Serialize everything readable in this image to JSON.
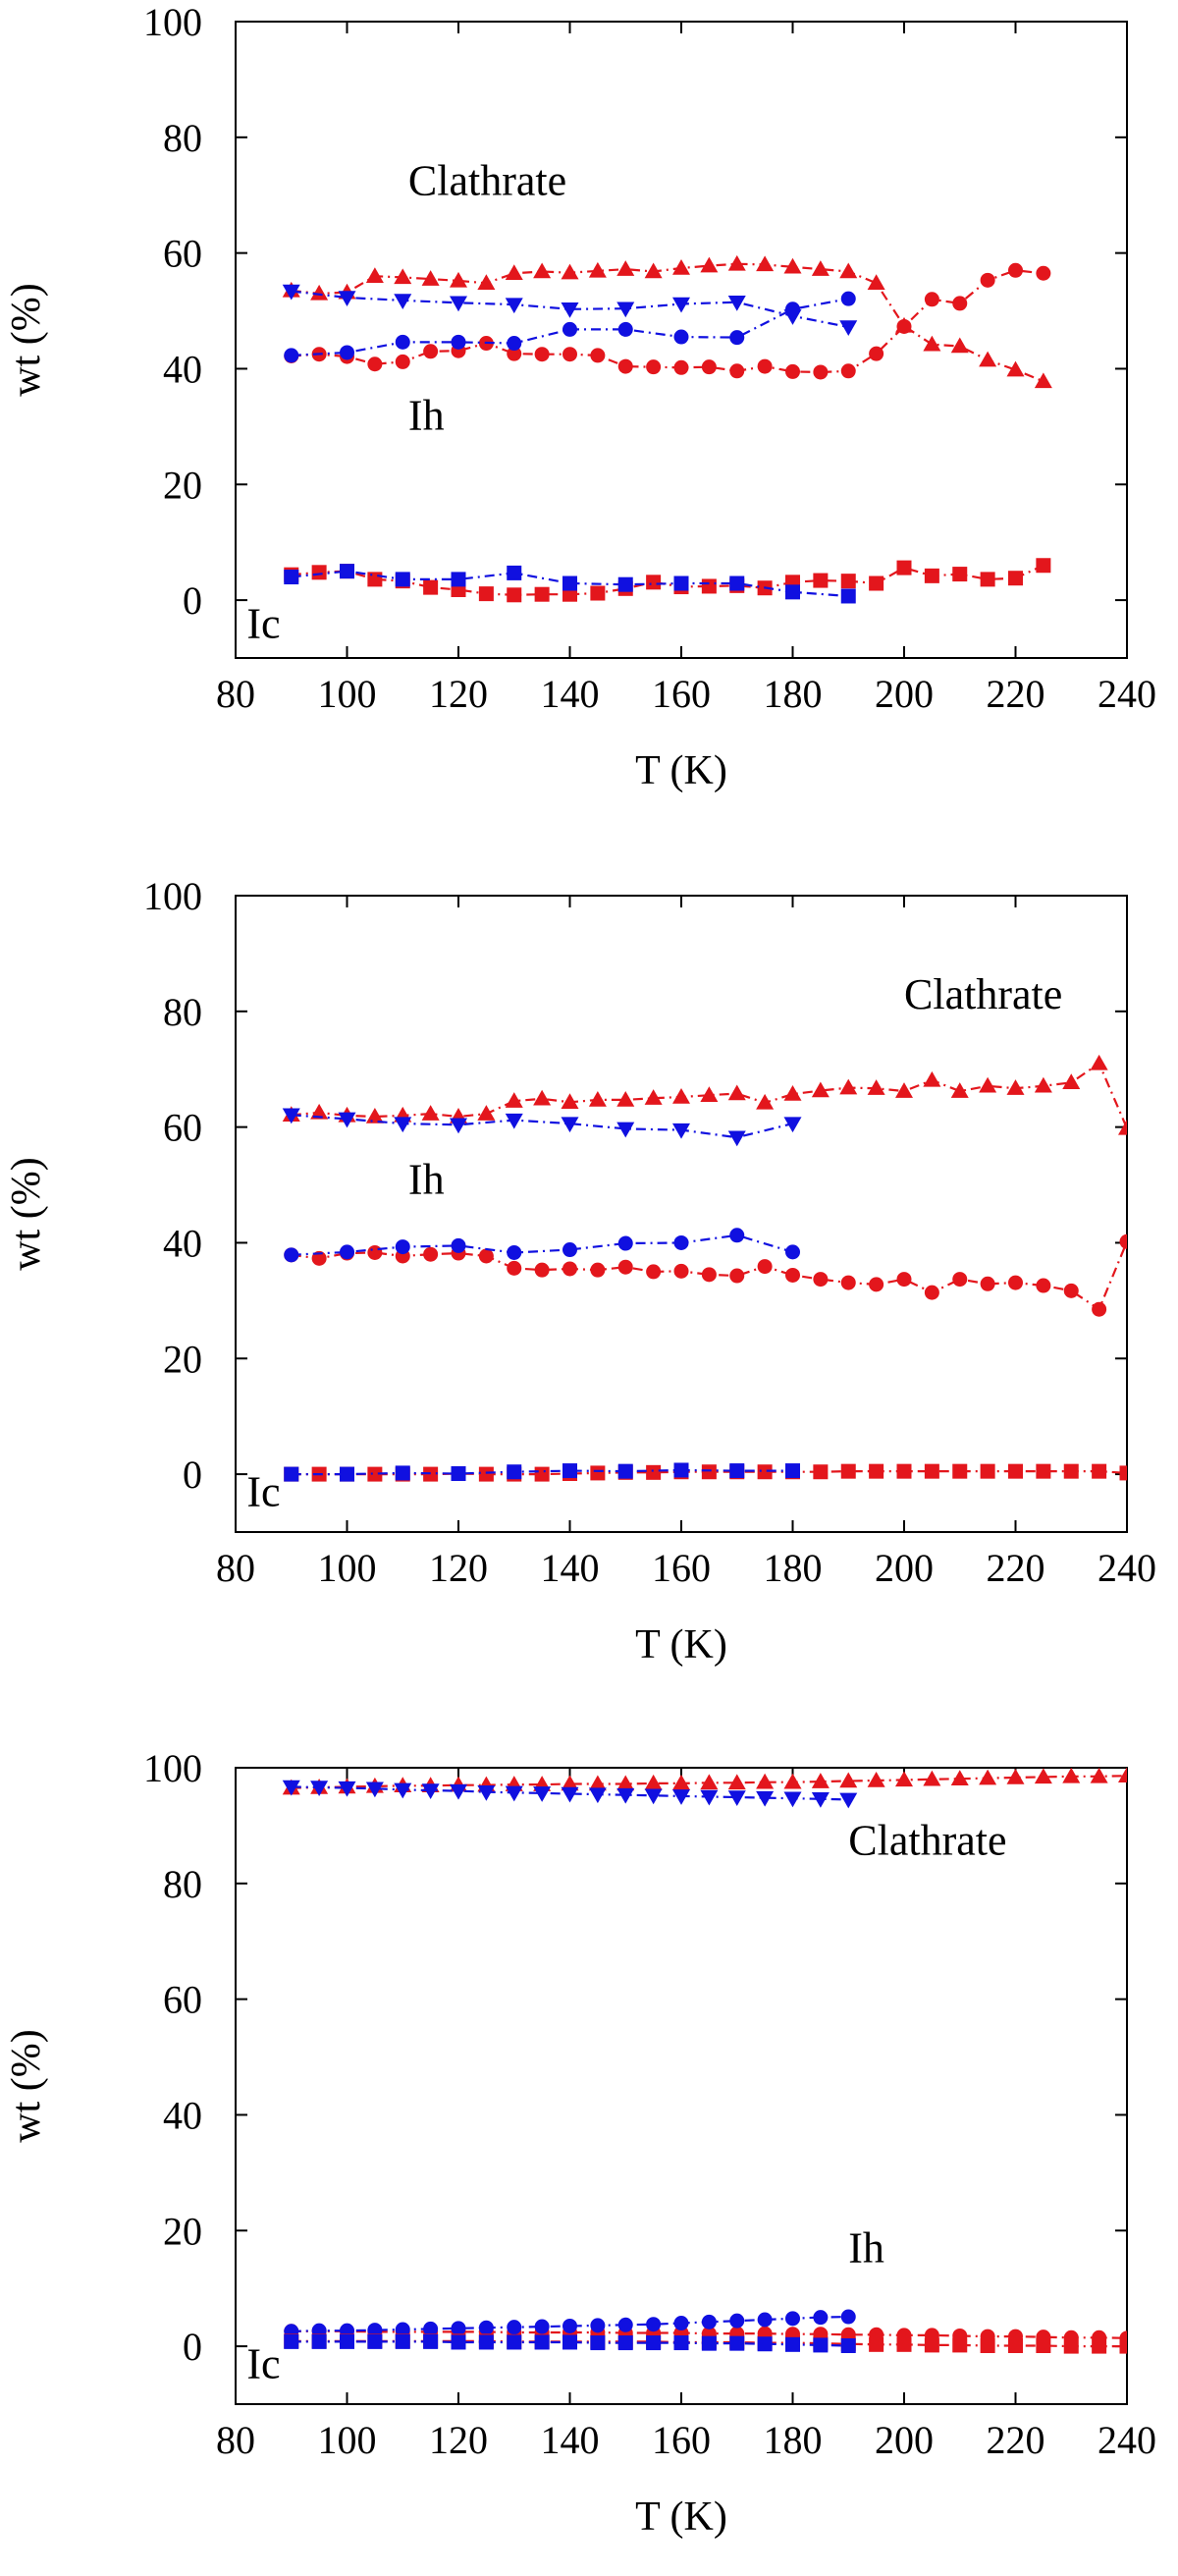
{
  "colors": {
    "red": "#e3161c",
    "blue": "#1010e0"
  },
  "chart_data": [
    {
      "type": "line",
      "xlabel": "T (K)",
      "ylabel": "wt (%)",
      "xlim": [
        80,
        240
      ],
      "ylim": [
        -10,
        100
      ],
      "xticks": [
        "80",
        "100",
        "120",
        "140",
        "160",
        "180",
        "200",
        "220",
        "240"
      ],
      "yticks": [
        "0",
        "20",
        "40",
        "60",
        "80",
        "100"
      ],
      "annotations": [
        {
          "text": "Clathrate",
          "x": 111,
          "y": 70
        },
        {
          "text": "Ih",
          "x": 111,
          "y": 29.5
        },
        {
          "text": "Ic",
          "x": 82,
          "y": -6.5
        }
      ],
      "series": [
        {
          "phase": "Clathrate",
          "color": "red",
          "marker": "triangle-up",
          "line": "dash-dot",
          "x": [
            90,
            95,
            100,
            105,
            110,
            115,
            120,
            125,
            130,
            135,
            140,
            145,
            150,
            155,
            160,
            165,
            170,
            175,
            180,
            185,
            190,
            195,
            200,
            205,
            210,
            215,
            220,
            225
          ],
          "y": [
            53.5,
            53,
            53.2,
            56,
            55.8,
            55.5,
            55.2,
            54.8,
            56.5,
            56.8,
            56.6,
            56.9,
            57.2,
            56.8,
            57.4,
            57.8,
            58.1,
            58,
            57.6,
            57.2,
            56.8,
            54.8,
            47.4,
            44.2,
            43.9,
            41.5,
            39.8,
            37.8
          ]
        },
        {
          "phase": "Clathrate",
          "color": "blue",
          "marker": "triangle-down",
          "line": "dash-dot",
          "x": [
            90,
            100,
            110,
            120,
            130,
            140,
            150,
            160,
            170,
            180,
            190
          ],
          "y": [
            53.4,
            52.3,
            51.8,
            51.4,
            51.1,
            50.3,
            50.4,
            51.2,
            51.5,
            49.1,
            47.2
          ]
        },
        {
          "phase": "Ih",
          "color": "red",
          "marker": "circle",
          "line": "dash-dot",
          "x": [
            90,
            95,
            100,
            105,
            110,
            115,
            120,
            125,
            130,
            135,
            140,
            145,
            150,
            155,
            160,
            165,
            170,
            175,
            180,
            185,
            190,
            195,
            200,
            205,
            210,
            215,
            220,
            225
          ],
          "y": [
            42.2,
            42.5,
            42.1,
            40.8,
            41.2,
            43,
            43.1,
            44.4,
            42.6,
            42.5,
            42.5,
            42.3,
            40.4,
            40.3,
            40.2,
            40.3,
            39.6,
            40.4,
            39.5,
            39.4,
            39.6,
            42.6,
            47.3,
            52,
            51.3,
            55.3,
            57,
            56.5
          ]
        },
        {
          "phase": "Ih",
          "color": "blue",
          "marker": "circle",
          "line": "dash-dot",
          "x": [
            90,
            100,
            110,
            120,
            130,
            140,
            150,
            160,
            170,
            180,
            190
          ],
          "y": [
            42.3,
            42.8,
            44.6,
            44.6,
            44.4,
            46.8,
            46.8,
            45.5,
            45.4,
            50.3,
            52.1
          ]
        },
        {
          "phase": "Ic",
          "color": "red",
          "marker": "square",
          "line": "dash-dot",
          "x": [
            90,
            95,
            100,
            105,
            110,
            115,
            120,
            125,
            130,
            135,
            140,
            145,
            150,
            155,
            160,
            165,
            170,
            175,
            180,
            185,
            190,
            195,
            200,
            205,
            210,
            215,
            220,
            225
          ],
          "y": [
            4.4,
            4.8,
            5,
            3.6,
            3.3,
            2.2,
            1.8,
            1.1,
            0.9,
            1,
            1,
            1.2,
            2,
            3.1,
            2.3,
            2.4,
            2.5,
            2.1,
            3.1,
            3.4,
            3.3,
            2.9,
            5.6,
            4.2,
            4.5,
            3.6,
            3.8,
            6
          ]
        },
        {
          "phase": "Ic",
          "color": "blue",
          "marker": "square",
          "line": "dash-dot",
          "x": [
            90,
            100,
            110,
            120,
            130,
            140,
            150,
            160,
            170,
            180,
            190
          ],
          "y": [
            4,
            5,
            3.6,
            3.6,
            4.7,
            2.9,
            2.7,
            2.9,
            2.9,
            1.4,
            0.7
          ]
        }
      ]
    },
    {
      "type": "line",
      "xlabel": "T (K)",
      "ylabel": "wt (%)",
      "xlim": [
        80,
        240
      ],
      "ylim": [
        -10,
        100
      ],
      "xticks": [
        "80",
        "100",
        "120",
        "140",
        "160",
        "180",
        "200",
        "220",
        "240"
      ],
      "yticks": [
        "0",
        "20",
        "40",
        "60",
        "80",
        "100"
      ],
      "annotations": [
        {
          "text": "Clathrate",
          "x": 200,
          "y": 80.5
        },
        {
          "text": "Ih",
          "x": 111,
          "y": 48.5
        },
        {
          "text": "Ic",
          "x": 82,
          "y": -5.5
        }
      ],
      "series": [
        {
          "phase": "Clathrate",
          "color": "red",
          "marker": "triangle-up",
          "line": "dash-dot",
          "x": [
            90,
            95,
            100,
            105,
            110,
            115,
            120,
            125,
            130,
            135,
            140,
            145,
            150,
            155,
            160,
            165,
            170,
            175,
            180,
            185,
            190,
            195,
            200,
            205,
            210,
            215,
            220,
            225,
            230,
            235,
            240
          ],
          "y": [
            62.1,
            62.5,
            62,
            61.8,
            62,
            62.3,
            61.8,
            62.3,
            64.5,
            64.9,
            64.3,
            64.7,
            64.7,
            65,
            65.2,
            65.5,
            65.8,
            64.2,
            65.7,
            66.3,
            66.8,
            66.7,
            66.2,
            68.1,
            66.2,
            67.1,
            66.7,
            67.1,
            67.7,
            71,
            59.8
          ]
        },
        {
          "phase": "Clathrate",
          "color": "blue",
          "marker": "triangle-down",
          "line": "dash-dot",
          "x": [
            90,
            100,
            110,
            120,
            130,
            140,
            150,
            160,
            170,
            180
          ],
          "y": [
            62.1,
            61.4,
            60.6,
            60.4,
            61.2,
            60.6,
            59.7,
            59.5,
            58.2,
            60.6
          ]
        },
        {
          "phase": "Ih",
          "color": "red",
          "marker": "circle",
          "line": "dash-dot",
          "x": [
            90,
            95,
            100,
            105,
            110,
            115,
            120,
            125,
            130,
            135,
            140,
            145,
            150,
            155,
            160,
            165,
            170,
            175,
            180,
            185,
            190,
            195,
            200,
            205,
            210,
            215,
            220,
            225,
            230,
            235,
            240
          ],
          "y": [
            37.9,
            37.3,
            38.2,
            38.3,
            37.7,
            38,
            38.2,
            37.7,
            35.6,
            35.3,
            35.5,
            35.3,
            35.8,
            35,
            35.1,
            34.5,
            34.3,
            35.9,
            34.4,
            33.7,
            33.1,
            32.8,
            33.7,
            31.4,
            33.7,
            32.9,
            33.1,
            32.6,
            31.7,
            28.5,
            40.2
          ]
        },
        {
          "phase": "Ih",
          "color": "blue",
          "marker": "circle",
          "line": "dash-dot",
          "x": [
            90,
            100,
            110,
            120,
            130,
            140,
            150,
            160,
            170,
            180
          ],
          "y": [
            37.9,
            38.4,
            39.3,
            39.5,
            38.3,
            38.8,
            39.9,
            40,
            41.3,
            38.4
          ]
        },
        {
          "phase": "Ic",
          "color": "red",
          "marker": "square",
          "line": "dash-dot",
          "x": [
            90,
            95,
            100,
            105,
            110,
            115,
            120,
            125,
            130,
            135,
            140,
            145,
            150,
            155,
            160,
            165,
            170,
            175,
            180,
            185,
            190,
            195,
            200,
            205,
            210,
            215,
            220,
            225,
            230,
            235,
            240
          ],
          "y": [
            0,
            0,
            0,
            0,
            0,
            0,
            0.1,
            0,
            0,
            0,
            0.1,
            0.2,
            0.3,
            0.3,
            0.4,
            0.4,
            0.4,
            0.4,
            0.4,
            0.4,
            0.5,
            0.5,
            0.5,
            0.5,
            0.5,
            0.5,
            0.5,
            0.5,
            0.5,
            0.5,
            0.2
          ]
        },
        {
          "phase": "Ic",
          "color": "blue",
          "marker": "square",
          "line": "dash-dot",
          "x": [
            90,
            100,
            110,
            120,
            130,
            140,
            150,
            160,
            170,
            180
          ],
          "y": [
            0,
            0,
            0.2,
            0.1,
            0.4,
            0.6,
            0.5,
            0.7,
            0.6,
            0.6
          ]
        }
      ]
    },
    {
      "type": "line",
      "xlabel": "T (K)",
      "ylabel": "wt (%)",
      "xlim": [
        80,
        240
      ],
      "ylim": [
        -10,
        100
      ],
      "xticks": [
        "80",
        "100",
        "120",
        "140",
        "160",
        "180",
        "200",
        "220",
        "240"
      ],
      "yticks": [
        "0",
        "20",
        "40",
        "60",
        "80",
        "100"
      ],
      "annotations": [
        {
          "text": "Clathrate",
          "x": 190,
          "y": 85
        },
        {
          "text": "Ih",
          "x": 190,
          "y": 14.5
        },
        {
          "text": "Ic",
          "x": 82,
          "y": -5.5
        }
      ],
      "series": [
        {
          "phase": "Clathrate",
          "color": "red",
          "marker": "triangle-up",
          "line": "dash-dot",
          "x": [
            90,
            95,
            100,
            105,
            110,
            115,
            120,
            125,
            130,
            135,
            140,
            145,
            150,
            155,
            160,
            165,
            170,
            175,
            180,
            185,
            190,
            195,
            200,
            205,
            210,
            215,
            220,
            225,
            230,
            235,
            240
          ],
          "y": [
            96.5,
            96.6,
            96.7,
            96.8,
            96.9,
            96.9,
            97,
            97,
            97.1,
            97.1,
            97.2,
            97.2,
            97.2,
            97.3,
            97.3,
            97.4,
            97.4,
            97.5,
            97.5,
            97.6,
            97.7,
            97.8,
            97.9,
            98,
            98.1,
            98.2,
            98.3,
            98.4,
            98.5,
            98.5,
            98.6
          ]
        },
        {
          "phase": "Clathrate",
          "color": "blue",
          "marker": "triangle-down",
          "line": "dash-dot",
          "x": [
            90,
            95,
            100,
            105,
            110,
            115,
            120,
            125,
            130,
            135,
            140,
            145,
            150,
            155,
            160,
            165,
            170,
            175,
            180,
            185,
            190
          ],
          "y": [
            96.7,
            96.6,
            96.5,
            96.4,
            96.2,
            96.1,
            96,
            95.8,
            95.7,
            95.6,
            95.5,
            95.4,
            95.3,
            95.2,
            95.1,
            95,
            94.9,
            94.8,
            94.7,
            94.6,
            94.5
          ]
        },
        {
          "phase": "Ih",
          "color": "red",
          "marker": "circle",
          "line": "dash-dot",
          "x": [
            90,
            95,
            100,
            105,
            110,
            115,
            120,
            125,
            130,
            135,
            140,
            145,
            150,
            155,
            160,
            165,
            170,
            175,
            180,
            185,
            190,
            195,
            200,
            205,
            210,
            215,
            220,
            225,
            230,
            235,
            240
          ],
          "y": [
            2.6,
            2.6,
            2.6,
            2.5,
            2.5,
            2.5,
            2.5,
            2.5,
            2.4,
            2.4,
            2.4,
            2.4,
            2.3,
            2.3,
            2.3,
            2.2,
            2.2,
            2.2,
            2.1,
            2.1,
            2,
            2,
            1.9,
            1.9,
            1.8,
            1.7,
            1.7,
            1.6,
            1.5,
            1.5,
            1.4
          ]
        },
        {
          "phase": "Ih",
          "color": "blue",
          "marker": "circle",
          "line": "dash-dot",
          "x": [
            90,
            95,
            100,
            105,
            110,
            115,
            120,
            125,
            130,
            135,
            140,
            145,
            150,
            155,
            160,
            165,
            170,
            175,
            180,
            185,
            190
          ],
          "y": [
            2.6,
            2.7,
            2.7,
            2.8,
            2.9,
            3,
            3.1,
            3.2,
            3.3,
            3.4,
            3.5,
            3.6,
            3.7,
            3.8,
            4,
            4.2,
            4.4,
            4.6,
            4.8,
            5,
            5.1
          ]
        },
        {
          "phase": "Ic",
          "color": "red",
          "marker": "square",
          "line": "dash-dot",
          "x": [
            90,
            95,
            100,
            105,
            110,
            115,
            120,
            125,
            130,
            135,
            140,
            145,
            150,
            155,
            160,
            165,
            170,
            175,
            180,
            185,
            190,
            195,
            200,
            205,
            210,
            215,
            220,
            225,
            230,
            235,
            240
          ],
          "y": [
            0.9,
            0.9,
            0.9,
            0.9,
            0.9,
            0.9,
            0.9,
            0.9,
            0.8,
            0.8,
            0.8,
            0.8,
            0.8,
            0.8,
            0.7,
            0.7,
            0.7,
            0.6,
            0.6,
            0.5,
            0.4,
            0.3,
            0.3,
            0.2,
            0.2,
            0.1,
            0.1,
            0.1,
            0,
            0,
            0
          ]
        },
        {
          "phase": "Ic",
          "color": "blue",
          "marker": "square",
          "line": "dash-dot",
          "x": [
            90,
            95,
            100,
            105,
            110,
            115,
            120,
            125,
            130,
            135,
            140,
            145,
            150,
            155,
            160,
            165,
            170,
            175,
            180,
            185,
            190
          ],
          "y": [
            0.8,
            0.8,
            0.8,
            0.8,
            0.8,
            0.8,
            0.7,
            0.7,
            0.7,
            0.7,
            0.7,
            0.6,
            0.6,
            0.6,
            0.6,
            0.5,
            0.5,
            0.4,
            0.3,
            0.2,
            0.1
          ]
        }
      ]
    }
  ]
}
